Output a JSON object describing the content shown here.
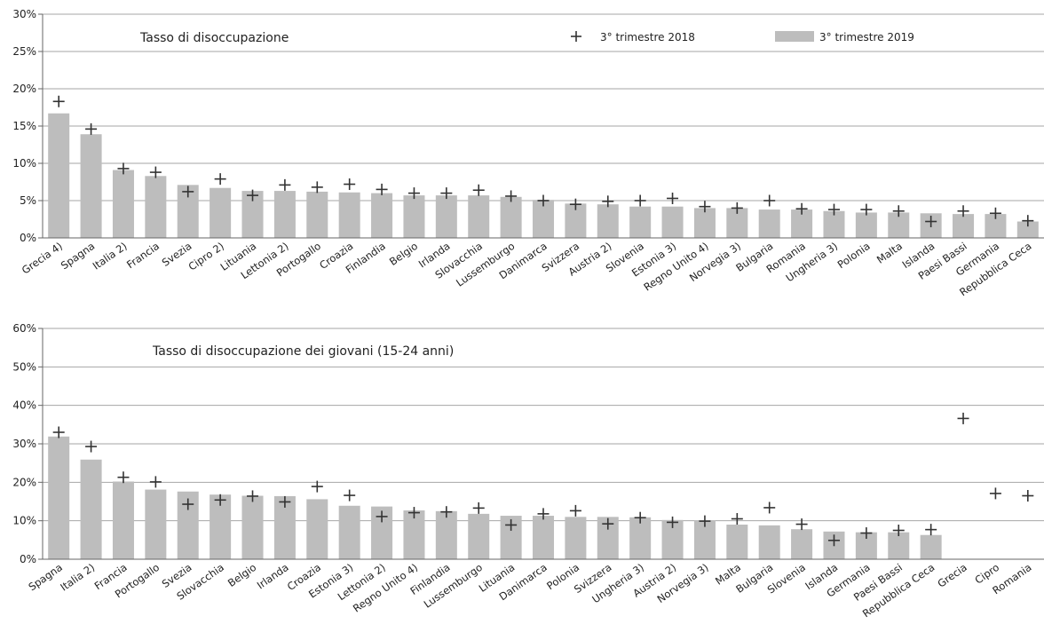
{
  "legend": {
    "marker_label": "3° trimestre 2018",
    "bar_label": "3° trimestre 2019"
  },
  "colors": {
    "bar": "#bdbdbd",
    "marker": "#333333",
    "grid": "#a6a6a6",
    "axis": "#666666"
  },
  "chart_data": [
    {
      "type": "bar",
      "title": "Tasso di disoccupazione",
      "ylim": [
        0,
        30
      ],
      "yticks": [
        0,
        5,
        10,
        15,
        20,
        25,
        30
      ],
      "ytick_suffix": "%",
      "grid": true,
      "legend_position": "top",
      "categories": [
        "Grecia 4)",
        "Spagna",
        "Italia 2)",
        "Francia",
        "Svezia",
        "Cipro 2)",
        "Lituania",
        "Lettonia 2)",
        "Portogallo",
        "Croazia",
        "Finlandia",
        "Belgio",
        "Irlanda",
        "Slovacchia",
        "Lussemburgo",
        "Danimarca",
        "Svizzera",
        "Austria 2)",
        "Slovenia",
        "Estonia 3)",
        "Regno Unito 4)",
        "Norvegia 3)",
        "Bulgaria",
        "Romania",
        "Ungheria 3)",
        "Polonia",
        "Malta",
        "Islanda",
        "Paesi Bassi",
        "Germania",
        "Repubblica Ceca"
      ],
      "series": [
        {
          "name": "3° trimestre 2019",
          "kind": "bar",
          "values": [
            16.7,
            13.9,
            9.1,
            8.3,
            7.1,
            6.7,
            6.3,
            6.3,
            6.2,
            6.1,
            6.0,
            5.7,
            5.7,
            5.7,
            5.5,
            5.1,
            4.6,
            4.5,
            4.2,
            4.2,
            4.0,
            4.0,
            3.8,
            3.8,
            3.6,
            3.4,
            3.4,
            3.3,
            3.2,
            3.2,
            2.2
          ]
        },
        {
          "name": "3° trimestre 2018",
          "kind": "marker",
          "values": [
            18.3,
            14.6,
            9.3,
            8.8,
            6.2,
            7.9,
            5.7,
            7.1,
            6.8,
            7.2,
            6.5,
            6.0,
            6.0,
            6.4,
            5.6,
            5.0,
            4.5,
            4.9,
            5.0,
            5.3,
            4.2,
            4.0,
            5.0,
            3.9,
            3.8,
            3.8,
            3.6,
            2.2,
            3.6,
            3.3,
            2.3
          ]
        }
      ]
    },
    {
      "type": "bar",
      "title": "Tasso di disoccupazione dei giovani (15-24 anni)",
      "ylim": [
        0,
        60
      ],
      "yticks": [
        0,
        10,
        20,
        30,
        40,
        50,
        60
      ],
      "ytick_suffix": "%",
      "grid": true,
      "categories": [
        "Spagna",
        "Italia 2)",
        "Francia",
        "Portogallo",
        "Svezia",
        "Slovacchia",
        "Belgio",
        "Irlanda",
        "Croazia",
        "Estonia 3)",
        "Lettonia 2)",
        "Regno Unito 4)",
        "Finlandia",
        "Lussemburgo",
        "Lituania",
        "Danimarca",
        "Polonia",
        "Svizzera",
        "Ungheria 3)",
        "Austria 2)",
        "Norvegia 3)",
        "Malta",
        "Bulgaria",
        "Slovenia",
        "Islanda",
        "Germania",
        "Paesi Bassi",
        "Repubblica Ceca",
        "Grecia",
        "Cipro",
        "Romania"
      ],
      "series": [
        {
          "name": "3° trimestre 2019",
          "kind": "bar",
          "values": [
            31.9,
            25.9,
            20.2,
            18.1,
            17.6,
            16.8,
            16.5,
            16.4,
            15.6,
            13.9,
            13.7,
            12.7,
            12.5,
            11.8,
            11.3,
            11.3,
            11.0,
            11.0,
            10.9,
            10.2,
            10.1,
            9.0,
            8.8,
            7.8,
            7.2,
            7.0,
            7.0,
            6.3,
            null,
            null,
            null
          ]
        },
        {
          "name": "3° trimestre 2018",
          "kind": "marker",
          "values": [
            33.0,
            29.3,
            21.3,
            20.1,
            14.3,
            15.4,
            16.4,
            14.9,
            18.9,
            16.6,
            11.1,
            12.1,
            12.3,
            13.3,
            8.9,
            11.8,
            12.6,
            9.2,
            10.8,
            9.6,
            9.9,
            10.5,
            13.4,
            9.1,
            4.9,
            6.8,
            7.5,
            7.7,
            36.6,
            17.1,
            16.5
          ]
        }
      ]
    }
  ]
}
